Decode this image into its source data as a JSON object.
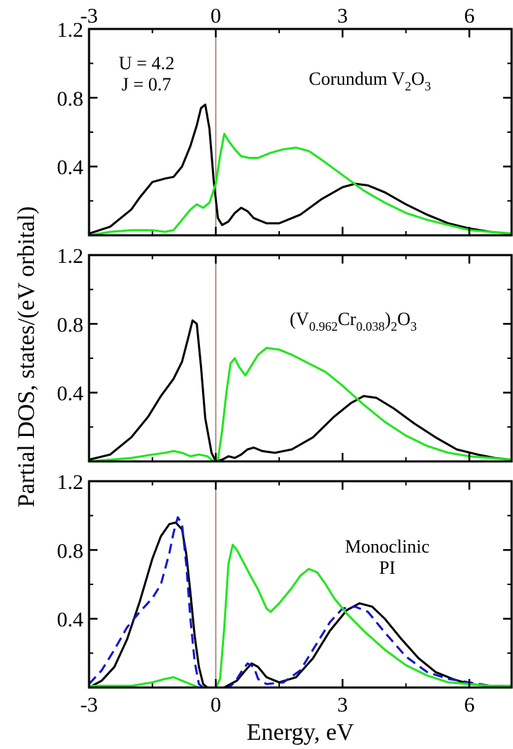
{
  "figure": {
    "xlabel": "Energy, eV",
    "ylabel": "Partial DOS, states/(eV orbital)"
  },
  "colors": {
    "black_series": "#000000",
    "green_series": "#22e61e",
    "blue_series": "#1515c8",
    "zero_line": "#a07868",
    "axes": "#000000"
  },
  "chart_data": [
    {
      "type": "line",
      "panel": "top",
      "title": "",
      "xlabel": "",
      "ylabel": "",
      "xlim": [
        -3,
        7
      ],
      "ylim": [
        0,
        1.2
      ],
      "xticks": [
        -3,
        0,
        3,
        6
      ],
      "yticks": [
        0.4,
        0.8,
        1.2
      ],
      "top_tick_labels": [
        "-3",
        "0",
        "3",
        "6"
      ],
      "ytick_labels": [
        "0.4",
        "0.8",
        "1.2"
      ],
      "grid": false,
      "annotations": [
        {
          "text": "U = 4.2",
          "position": "top-left"
        },
        {
          "text": "J = 0.7",
          "position": "top-left"
        },
        {
          "parts": [
            "Corundum V",
            "2",
            "O",
            "3"
          ],
          "position": "top-right"
        }
      ],
      "series": [
        {
          "color": "black",
          "style": "solid",
          "x": [
            -3,
            -2.5,
            -2,
            -1.8,
            -1.5,
            -1.2,
            -1.0,
            -0.8,
            -0.6,
            -0.45,
            -0.35,
            -0.25,
            -0.15,
            -0.05,
            0.05,
            0.15,
            0.3,
            0.45,
            0.6,
            0.75,
            0.9,
            1.2,
            1.5,
            2.0,
            2.5,
            3.0,
            3.3,
            3.6,
            4.0,
            4.5,
            5.0,
            5.5,
            6.0,
            6.5,
            7.0
          ],
          "y": [
            0.01,
            0.05,
            0.15,
            0.22,
            0.31,
            0.33,
            0.34,
            0.4,
            0.52,
            0.64,
            0.74,
            0.76,
            0.62,
            0.32,
            0.1,
            0.06,
            0.08,
            0.13,
            0.16,
            0.14,
            0.1,
            0.07,
            0.07,
            0.12,
            0.21,
            0.28,
            0.3,
            0.29,
            0.25,
            0.18,
            0.12,
            0.07,
            0.04,
            0.02,
            0.01
          ]
        },
        {
          "color": "green",
          "style": "solid",
          "x": [
            -3,
            -2.5,
            -2,
            -1.5,
            -1.2,
            -1.0,
            -0.8,
            -0.6,
            -0.45,
            -0.3,
            -0.15,
            0,
            0.1,
            0.2,
            0.3,
            0.45,
            0.6,
            0.8,
            1.0,
            1.3,
            1.6,
            1.9,
            2.2,
            2.5,
            3.0,
            3.5,
            4.0,
            4.5,
            5.0,
            5.5,
            6.0,
            6.5,
            7.0
          ],
          "y": [
            0.0,
            0.02,
            0.03,
            0.03,
            0.02,
            0.03,
            0.09,
            0.15,
            0.18,
            0.16,
            0.19,
            0.3,
            0.46,
            0.59,
            0.55,
            0.5,
            0.46,
            0.45,
            0.45,
            0.48,
            0.5,
            0.51,
            0.49,
            0.44,
            0.35,
            0.26,
            0.19,
            0.13,
            0.09,
            0.06,
            0.03,
            0.02,
            0.01
          ]
        }
      ]
    },
    {
      "type": "line",
      "panel": "middle",
      "title": "",
      "xlabel": "",
      "ylabel": "",
      "xlim": [
        -3,
        7
      ],
      "ylim": [
        0,
        1.2
      ],
      "xticks": [
        -3,
        0,
        3,
        6
      ],
      "yticks": [
        0.4,
        0.8,
        1.2
      ],
      "ytick_labels": [
        "0.4",
        "0.8",
        "1.2"
      ],
      "grid": false,
      "annotations": [
        {
          "parts": [
            "(V",
            "0.962",
            "Cr",
            "0.038",
            ")",
            "2",
            "O",
            "3"
          ],
          "position": "top-right"
        }
      ],
      "series": [
        {
          "color": "black",
          "style": "solid",
          "x": [
            -3,
            -2.5,
            -2,
            -1.6,
            -1.3,
            -1.0,
            -0.8,
            -0.65,
            -0.55,
            -0.45,
            -0.35,
            -0.25,
            -0.1,
            0,
            0.15,
            0.3,
            0.45,
            0.6,
            0.75,
            0.9,
            1.1,
            1.4,
            1.8,
            2.3,
            2.8,
            3.2,
            3.5,
            3.8,
            4.2,
            4.7,
            5.2,
            5.7,
            6.2,
            6.6,
            7.0
          ],
          "y": [
            0.01,
            0.04,
            0.14,
            0.26,
            0.38,
            0.48,
            0.58,
            0.72,
            0.82,
            0.8,
            0.55,
            0.25,
            0.05,
            0.0,
            0.01,
            0.03,
            0.02,
            0.04,
            0.07,
            0.08,
            0.06,
            0.05,
            0.07,
            0.14,
            0.26,
            0.34,
            0.38,
            0.37,
            0.31,
            0.22,
            0.14,
            0.07,
            0.04,
            0.02,
            0.01
          ]
        },
        {
          "color": "green",
          "style": "solid",
          "x": [
            -3,
            -2.5,
            -2,
            -1.5,
            -1.2,
            -1.0,
            -0.8,
            -0.6,
            -0.4,
            -0.2,
            -0.05,
            0.05,
            0.15,
            0.25,
            0.35,
            0.45,
            0.55,
            0.7,
            0.85,
            1.0,
            1.2,
            1.5,
            1.8,
            2.2,
            2.6,
            3.0,
            3.5,
            4.0,
            4.5,
            5.0,
            5.5,
            6.0,
            6.5,
            7.0
          ],
          "y": [
            0.0,
            0.01,
            0.02,
            0.04,
            0.05,
            0.06,
            0.05,
            0.03,
            0.04,
            0.03,
            0.0,
            0.01,
            0.18,
            0.4,
            0.57,
            0.6,
            0.55,
            0.5,
            0.56,
            0.62,
            0.66,
            0.65,
            0.62,
            0.57,
            0.52,
            0.44,
            0.33,
            0.23,
            0.15,
            0.09,
            0.05,
            0.03,
            0.02,
            0.01
          ]
        }
      ]
    },
    {
      "type": "line",
      "panel": "bottom",
      "title": "",
      "xlabel": "Energy, eV",
      "ylabel": "",
      "xlim": [
        -3,
        7
      ],
      "ylim": [
        0,
        1.2
      ],
      "xticks": [
        -3,
        0,
        3,
        6
      ],
      "yticks": [
        0.4,
        0.8,
        1.2
      ],
      "xtick_labels": [
        "-3",
        "0",
        "3",
        "6"
      ],
      "ytick_labels": [
        "0.4",
        "0.8",
        "1.2"
      ],
      "grid": false,
      "annotations": [
        {
          "text": "Monoclinic",
          "position": "top-right"
        },
        {
          "text": "PI",
          "position": "top-right"
        }
      ],
      "series": [
        {
          "color": "black",
          "style": "solid",
          "x": [
            -3,
            -2.7,
            -2.4,
            -2.1,
            -1.8,
            -1.5,
            -1.3,
            -1.1,
            -0.95,
            -0.8,
            -0.7,
            -0.6,
            -0.5,
            -0.4,
            -0.3,
            -0.2,
            0.2,
            0.35,
            0.5,
            0.7,
            0.85,
            1.0,
            1.2,
            1.5,
            1.9,
            2.3,
            2.7,
            3.1,
            3.4,
            3.7,
            4.0,
            4.4,
            4.8,
            5.2,
            5.6,
            6.0,
            6.5,
            7.0
          ],
          "y": [
            0.0,
            0.04,
            0.12,
            0.28,
            0.5,
            0.75,
            0.88,
            0.95,
            0.96,
            0.92,
            0.78,
            0.55,
            0.3,
            0.12,
            0.02,
            0.0,
            0.0,
            0.02,
            0.04,
            0.1,
            0.14,
            0.12,
            0.06,
            0.03,
            0.06,
            0.17,
            0.33,
            0.45,
            0.49,
            0.47,
            0.4,
            0.28,
            0.17,
            0.09,
            0.05,
            0.02,
            0.01,
            0.0
          ]
        },
        {
          "color": "blue",
          "style": "dashed",
          "x": [
            -3,
            -2.7,
            -2.4,
            -2.1,
            -1.8,
            -1.5,
            -1.3,
            -1.1,
            -1.0,
            -0.9,
            -0.8,
            -0.7,
            -0.6,
            -0.5,
            -0.4,
            -0.3,
            0.3,
            0.45,
            0.6,
            0.75,
            0.9,
            1.0,
            1.2,
            1.6,
            2.0,
            2.4,
            2.7,
            3.0,
            3.3,
            3.6,
            4.0,
            4.5,
            5.0,
            5.5,
            6.0,
            6.5,
            7.0
          ],
          "y": [
            0.02,
            0.1,
            0.22,
            0.35,
            0.44,
            0.52,
            0.6,
            0.78,
            0.9,
            0.99,
            0.95,
            0.72,
            0.4,
            0.15,
            0.02,
            0.0,
            0.0,
            0.03,
            0.09,
            0.14,
            0.12,
            0.05,
            0.02,
            0.03,
            0.1,
            0.26,
            0.38,
            0.46,
            0.47,
            0.44,
            0.32,
            0.18,
            0.09,
            0.05,
            0.03,
            0.01,
            0.01
          ]
        },
        {
          "color": "green",
          "style": "solid",
          "x": [
            -3,
            -2.5,
            -2.0,
            -1.5,
            -1.2,
            -1.0,
            -0.8,
            -0.6,
            -0.4,
            0.0,
            0.1,
            0.2,
            0.3,
            0.4,
            0.5,
            0.65,
            0.8,
            1.0,
            1.2,
            1.3,
            1.5,
            1.8,
            2.0,
            2.2,
            2.4,
            2.6,
            2.8,
            3.1,
            3.5,
            4.0,
            4.5,
            5.0,
            5.5,
            6.0,
            6.5,
            7.0
          ],
          "y": [
            0.01,
            0.01,
            0.01,
            0.03,
            0.05,
            0.06,
            0.04,
            0.02,
            0.0,
            0.0,
            0.05,
            0.35,
            0.72,
            0.83,
            0.8,
            0.73,
            0.66,
            0.57,
            0.46,
            0.44,
            0.49,
            0.58,
            0.65,
            0.69,
            0.67,
            0.6,
            0.52,
            0.43,
            0.33,
            0.22,
            0.13,
            0.07,
            0.03,
            0.02,
            0.01,
            0.01
          ]
        }
      ]
    }
  ]
}
